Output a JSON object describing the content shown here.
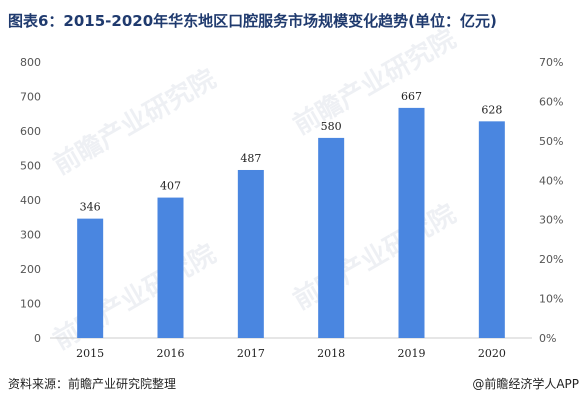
{
  "title": "图表6：2015-2020年华东地区口腔服务市场规模变化趋势(单位：亿元)",
  "source": "资料来源：前瞻产业研究院整理",
  "credit": "@前瞻经济学人APP",
  "watermark_text": "前瞻产业研究院",
  "colors": {
    "bar": "#4a86e0",
    "title": "#1f3a6e",
    "axis": "#cccccc"
  },
  "chart_data": {
    "type": "bar",
    "categories": [
      "2015",
      "2016",
      "2017",
      "2018",
      "2019",
      "2020"
    ],
    "values": [
      346,
      407,
      487,
      580,
      667,
      628
    ],
    "data_labels": [
      "346",
      "407",
      "487",
      "580",
      "667",
      "628"
    ],
    "ylim": [
      0,
      800
    ],
    "y_ticks": [
      "0",
      "100",
      "200",
      "300",
      "400",
      "500",
      "600",
      "700",
      "800"
    ],
    "y2lim": [
      0,
      70
    ],
    "y2_ticks": [
      "0%",
      "10%",
      "20%",
      "30%",
      "40%",
      "50%",
      "60%",
      "70%"
    ],
    "grid": false,
    "legend": "none"
  }
}
